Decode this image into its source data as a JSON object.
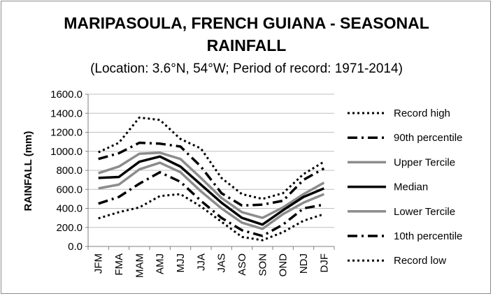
{
  "chart_data": {
    "type": "line",
    "title_line1": "MARIPASOULA, FRENCH GUIANA - SEASONAL",
    "title_line2": "RAINFALL",
    "subtitle": "(Location: 3.6°N, 54°W; Period of record: 1971-2014)",
    "xlabel": "",
    "ylabel": "RAINFALL (mm)",
    "categories": [
      "JFM",
      "FMA",
      "MAM",
      "AMJ",
      "MJJ",
      "JJA",
      "JAS",
      "ASO",
      "SON",
      "OND",
      "NDJ",
      "DJF"
    ],
    "ylim": [
      0,
      1600
    ],
    "yticks": [
      "0.0",
      "200.0",
      "400.0",
      "600.0",
      "800.0",
      "1000.0",
      "1200.0",
      "1400.0",
      "1600.0"
    ],
    "grid": true,
    "legend_position": "right",
    "series": [
      {
        "name": "Record high",
        "style": "dotted",
        "color": "#000000",
        "values": [
          990,
          1090,
          1355,
          1330,
          1130,
          1030,
          720,
          550,
          500,
          560,
          760,
          890
        ]
      },
      {
        "name": "90th percentile",
        "style": "dashdot",
        "color": "#000000",
        "values": [
          920,
          980,
          1090,
          1080,
          1050,
          840,
          560,
          430,
          440,
          480,
          700,
          820
        ]
      },
      {
        "name": "Upper Tercile",
        "style": "solid",
        "color": "#8c8c8c",
        "values": [
          770,
          840,
          975,
          985,
          920,
          720,
          510,
          360,
          300,
          410,
          550,
          670
        ]
      },
      {
        "name": "Median",
        "style": "solid",
        "color": "#000000",
        "values": [
          720,
          730,
          890,
          945,
          840,
          650,
          460,
          300,
          230,
          380,
          520,
          610
        ]
      },
      {
        "name": "Lower Tercile",
        "style": "solid",
        "color": "#8c8c8c",
        "values": [
          610,
          650,
          810,
          880,
          780,
          580,
          400,
          250,
          185,
          340,
          460,
          550
        ]
      },
      {
        "name": "10th percentile",
        "style": "dashdot",
        "color": "#000000",
        "values": [
          450,
          520,
          660,
          780,
          680,
          480,
          300,
          170,
          110,
          230,
          400,
          440
        ]
      },
      {
        "name": "Record low",
        "style": "dotted",
        "color": "#000000",
        "values": [
          295,
          360,
          410,
          530,
          550,
          420,
          260,
          100,
          65,
          150,
          270,
          340
        ]
      }
    ]
  }
}
